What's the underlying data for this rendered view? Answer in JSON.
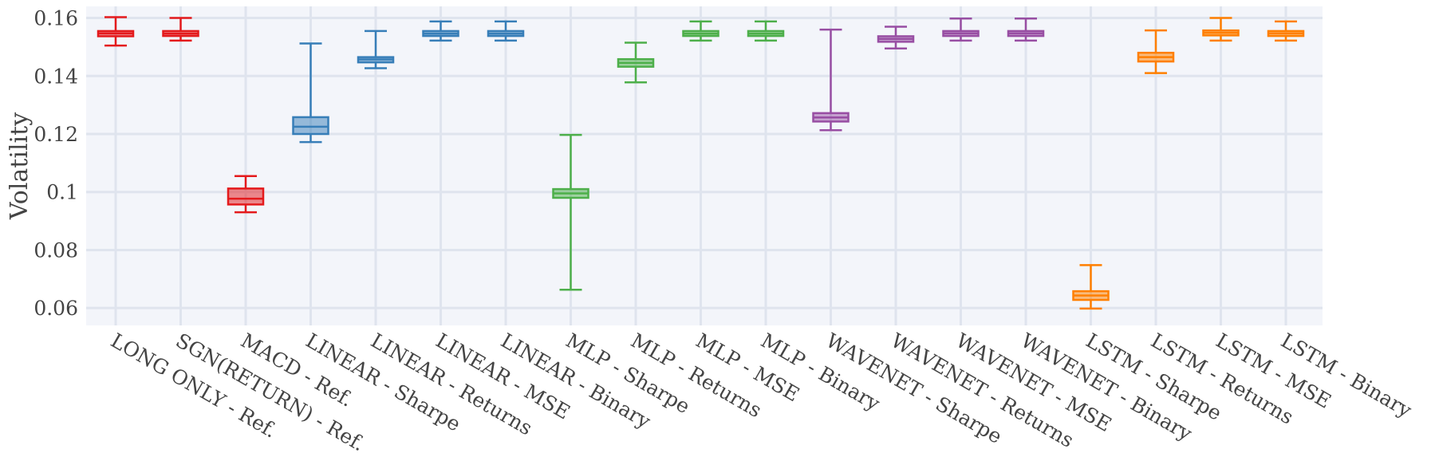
{
  "chart_data": {
    "type": "box",
    "ylabel": "Volatility",
    "ylim": [
      0.054,
      0.164
    ],
    "yticks": [
      0.06,
      0.08,
      0.1,
      0.12,
      0.14,
      0.16
    ],
    "ytick_labels": [
      "0.06",
      "0.08",
      "0.1",
      "0.12",
      "0.14",
      "0.16"
    ],
    "grid": true,
    "plot_background": "#f3f5fa",
    "grid_color": "#dfe4ee",
    "categories": [
      "LONG ONLY - Ref.",
      "SGN(RETURN) - Ref.",
      "MACD - Ref.",
      "LINEAR - Sharpe",
      "LINEAR - Returns",
      "LINEAR - MSE",
      "LINEAR - Binary",
      "MLP - Sharpe",
      "MLP - Returns",
      "MLP - MSE",
      "MLP - Binary",
      "WAVENET - Sharpe",
      "WAVENET - Returns",
      "WAVENET - MSE",
      "WAVENET - Binary",
      "LSTM - Sharpe",
      "LSTM - Returns",
      "LSTM - MSE",
      "LSTM - Binary"
    ],
    "boxes": [
      {
        "min": 0.1505,
        "q1": 0.1537,
        "median": 0.1547,
        "q3": 0.1555,
        "max": 0.1603,
        "color": "#e41a1c"
      },
      {
        "min": 0.1522,
        "q1": 0.1538,
        "median": 0.1546,
        "q3": 0.1555,
        "max": 0.16,
        "color": "#e41a1c"
      },
      {
        "min": 0.093,
        "q1": 0.0957,
        "median": 0.0977,
        "q3": 0.1012,
        "max": 0.1055,
        "color": "#e41a1c"
      },
      {
        "min": 0.1172,
        "q1": 0.12,
        "median": 0.1225,
        "q3": 0.1258,
        "max": 0.1512,
        "color": "#377eb8"
      },
      {
        "min": 0.1427,
        "q1": 0.1447,
        "median": 0.1457,
        "q3": 0.1465,
        "max": 0.1555,
        "color": "#377eb8"
      },
      {
        "min": 0.1522,
        "q1": 0.1538,
        "median": 0.1546,
        "q3": 0.1555,
        "max": 0.1588,
        "color": "#377eb8"
      },
      {
        "min": 0.1522,
        "q1": 0.1538,
        "median": 0.1546,
        "q3": 0.1555,
        "max": 0.1588,
        "color": "#377eb8"
      },
      {
        "min": 0.0663,
        "q1": 0.098,
        "median": 0.0995,
        "q3": 0.101,
        "max": 0.1197,
        "color": "#4daf4a"
      },
      {
        "min": 0.1378,
        "q1": 0.1432,
        "median": 0.1445,
        "q3": 0.1458,
        "max": 0.1515,
        "color": "#4daf4a"
      },
      {
        "min": 0.1522,
        "q1": 0.1538,
        "median": 0.1546,
        "q3": 0.1555,
        "max": 0.1588,
        "color": "#4daf4a"
      },
      {
        "min": 0.1522,
        "q1": 0.1538,
        "median": 0.1546,
        "q3": 0.1555,
        "max": 0.1588,
        "color": "#4daf4a"
      },
      {
        "min": 0.1213,
        "q1": 0.1243,
        "median": 0.1257,
        "q3": 0.1272,
        "max": 0.156,
        "color": "#984ea3"
      },
      {
        "min": 0.1495,
        "q1": 0.1518,
        "median": 0.1528,
        "q3": 0.1537,
        "max": 0.157,
        "color": "#984ea3"
      },
      {
        "min": 0.1522,
        "q1": 0.1538,
        "median": 0.1547,
        "q3": 0.1555,
        "max": 0.1598,
        "color": "#984ea3"
      },
      {
        "min": 0.1522,
        "q1": 0.1538,
        "median": 0.1547,
        "q3": 0.1555,
        "max": 0.1598,
        "color": "#984ea3"
      },
      {
        "min": 0.0598,
        "q1": 0.0628,
        "median": 0.0643,
        "q3": 0.0658,
        "max": 0.0748,
        "color": "#ff7f00"
      },
      {
        "min": 0.141,
        "q1": 0.145,
        "median": 0.1465,
        "q3": 0.148,
        "max": 0.1557,
        "color": "#ff7f00"
      },
      {
        "min": 0.1522,
        "q1": 0.154,
        "median": 0.1549,
        "q3": 0.1557,
        "max": 0.16,
        "color": "#ff7f00"
      },
      {
        "min": 0.1522,
        "q1": 0.1538,
        "median": 0.1547,
        "q3": 0.1555,
        "max": 0.1588,
        "color": "#ff7f00"
      }
    ]
  }
}
